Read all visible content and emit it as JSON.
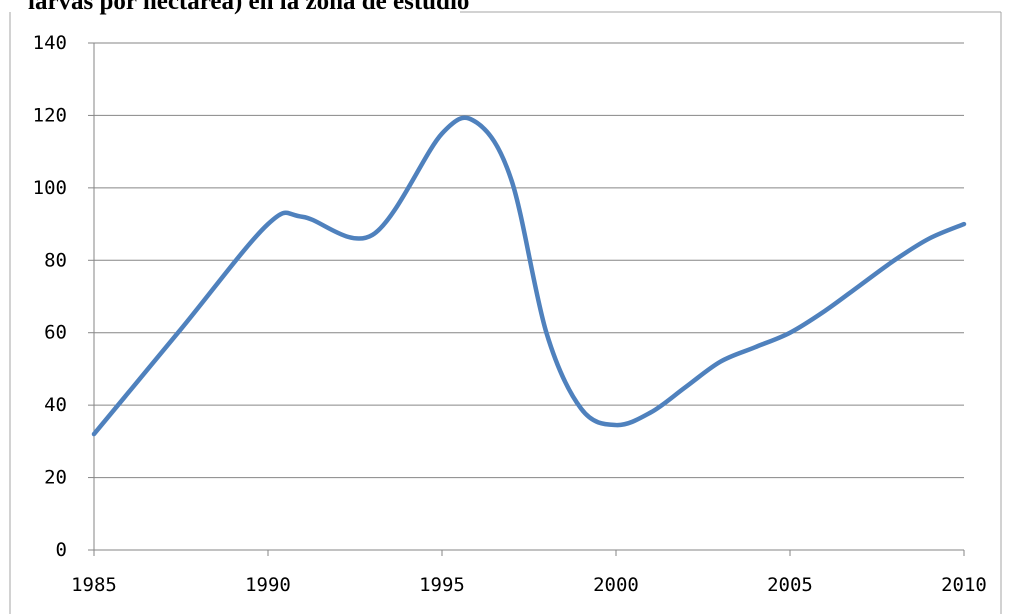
{
  "chart_data": {
    "type": "line",
    "title": "larvas por hectárea) en la zona de estudio",
    "xlabel": "",
    "ylabel": "",
    "x": [
      1985,
      1987.5,
      1990,
      1991,
      1993,
      1995,
      1996,
      1997,
      1998,
      1999,
      2000,
      2001,
      2002,
      2003,
      2004,
      2005,
      2006,
      2007,
      2008,
      2009,
      2010
    ],
    "series": [
      {
        "values": [
          32,
          61,
          90,
          92,
          87,
          115,
          118,
          102,
          60,
          39,
          34.5,
          38,
          45,
          52,
          56,
          60,
          66,
          73,
          80,
          86,
          90
        ]
      }
    ],
    "xlim": [
      1985,
      2010
    ],
    "ylim": [
      0,
      140
    ],
    "x_ticks": [
      "1985",
      "1990",
      "1995",
      "2000",
      "2005",
      "2010"
    ],
    "y_ticks": [
      "0",
      "20",
      "40",
      "60",
      "80",
      "100",
      "120",
      "140"
    ],
    "grid": "horizontal",
    "legend": "none",
    "line_color": "#4f81bd",
    "grid_color": "#868686",
    "axis_color": "#868686"
  }
}
